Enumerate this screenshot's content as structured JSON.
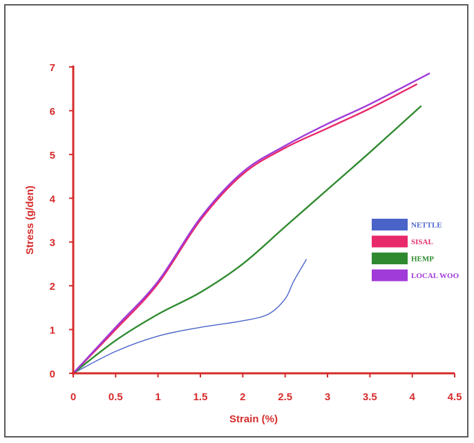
{
  "chart_data": {
    "type": "line",
    "title": "",
    "xlabel": "Strain (%)",
    "ylabel": "Stress (g/den)",
    "xlim": [
      0,
      4.5
    ],
    "ylim": [
      0,
      7
    ],
    "x_ticks": [
      "0",
      "0.5",
      "1",
      "1.5",
      "2",
      "2.5",
      "3",
      "3.5",
      "4",
      "4.5"
    ],
    "y_ticks": [
      "0",
      "1",
      "2",
      "3",
      "4",
      "5",
      "6",
      "7"
    ],
    "grid": false,
    "legend_position": "right",
    "axis_color": "#d62b2b",
    "series": [
      {
        "name": "NETTLE",
        "color": "#4a63c8",
        "x": [
          0,
          0.5,
          1.0,
          1.5,
          2.0,
          2.3,
          2.5,
          2.6,
          2.75
        ],
        "y": [
          0,
          0.5,
          0.85,
          1.05,
          1.2,
          1.35,
          1.7,
          2.1,
          2.6
        ]
      },
      {
        "name": "SISAL",
        "color": "#e8296a",
        "x": [
          0,
          0.5,
          1.0,
          1.5,
          2.0,
          2.5,
          3.0,
          3.5,
          4.05
        ],
        "y": [
          0,
          1.0,
          2.05,
          3.5,
          4.55,
          5.15,
          5.6,
          6.05,
          6.6
        ]
      },
      {
        "name": "HEMP",
        "color": "#2f8a2f",
        "x": [
          0,
          0.5,
          1.0,
          1.5,
          2.0,
          2.5,
          3.0,
          3.5,
          4.1
        ],
        "y": [
          0,
          0.75,
          1.35,
          1.85,
          2.5,
          3.35,
          4.2,
          5.05,
          6.1
        ]
      },
      {
        "name": "LOCAL WOO",
        "color": "#a03ad8",
        "x": [
          0,
          0.5,
          1.0,
          1.5,
          2.0,
          2.5,
          3.0,
          3.5,
          4.2
        ],
        "y": [
          0,
          1.05,
          2.1,
          3.55,
          4.6,
          5.2,
          5.7,
          6.15,
          6.85
        ]
      }
    ]
  }
}
